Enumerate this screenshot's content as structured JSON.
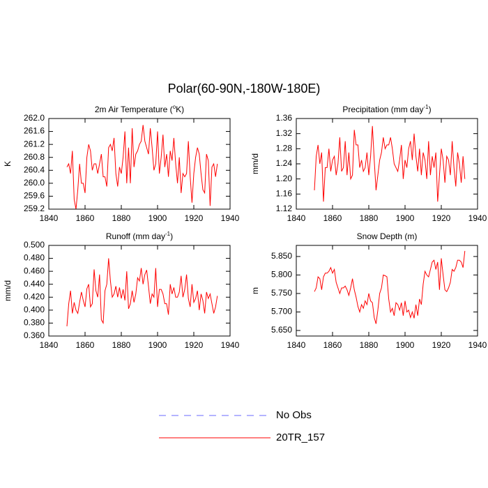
{
  "title": "Polar(60-90N,-180W-180E)",
  "legend": [
    {
      "name": "No Obs",
      "color": "#6a6aff",
      "dashed": true
    },
    {
      "name": "20TR_157",
      "color": "#ff0000",
      "dashed": false
    }
  ],
  "chart_data": [
    {
      "type": "line",
      "title_parts": [
        {
          "text": "2m Air Temperature ("
        },
        {
          "text": "o",
          "sup": true
        },
        {
          "text": "K)"
        }
      ],
      "ylabel": "K",
      "x": [
        1850,
        1851,
        1852,
        1853,
        1854,
        1855,
        1856,
        1857,
        1858,
        1859,
        1860,
        1861,
        1862,
        1863,
        1864,
        1865,
        1866,
        1867,
        1868,
        1869,
        1870,
        1871,
        1872,
        1873,
        1874,
        1875,
        1876,
        1877,
        1878,
        1879,
        1880,
        1881,
        1882,
        1883,
        1884,
        1885,
        1886,
        1887,
        1888,
        1889,
        1890,
        1891,
        1892,
        1893,
        1894,
        1895,
        1896,
        1897,
        1898,
        1899,
        1900,
        1901,
        1902,
        1903,
        1904,
        1905,
        1906,
        1907,
        1908,
        1909,
        1910,
        1911,
        1912,
        1913,
        1914,
        1915,
        1916,
        1917,
        1918,
        1919,
        1920,
        1921,
        1922,
        1923,
        1924,
        1925,
        1926,
        1927,
        1928,
        1929,
        1930,
        1931,
        1932,
        1933
      ],
      "xlim": [
        1840,
        1940
      ],
      "xticks": [
        1840,
        1860,
        1880,
        1900,
        1920,
        1940
      ],
      "ylim": [
        259.2,
        262.0
      ],
      "yticks": [
        259.2,
        259.6,
        {
          "value": 260,
          "label": "260.0"
        },
        260.4,
        260.8,
        261.2,
        261.6,
        {
          "value": 262,
          "label": "262.0"
        }
      ],
      "series": [
        {
          "color": "#ff0000",
          "values": [
            260.5,
            260.6,
            260.3,
            261.0,
            259.5,
            259.2,
            259.8,
            260.6,
            260.0,
            260.0,
            259.7,
            260.8,
            261.2,
            261.0,
            260.4,
            260.6,
            260.6,
            260.3,
            260.6,
            260.9,
            260.2,
            260.2,
            259.9,
            261.1,
            261.2,
            261.0,
            261.4,
            260.3,
            259.9,
            260.5,
            260.3,
            260.8,
            261.6,
            260.0,
            261.1,
            260.0,
            261.7,
            260.5,
            260.9,
            261.0,
            261.2,
            261.3,
            261.8,
            261.3,
            261.1,
            260.9,
            261.7,
            261.1,
            260.4,
            260.6,
            261.6,
            260.3,
            260.8,
            261.5,
            260.5,
            260.9,
            260.2,
            261.0,
            260.7,
            261.4,
            260.6,
            260.0,
            260.8,
            259.7,
            260.3,
            260.2,
            260.3,
            261.3,
            260.2,
            259.4,
            260.3,
            260.8,
            261.1,
            260.9,
            260.3,
            259.8,
            259.7,
            260.9,
            260.7,
            259.3,
            260.5,
            260.6,
            260.2,
            260.6
          ]
        }
      ]
    },
    {
      "type": "line",
      "title_parts": [
        {
          "text": "Precipitation (mm day"
        },
        {
          "text": "-1",
          "sup": true
        },
        {
          "text": ")"
        }
      ],
      "ylabel": "mm/d",
      "x": [
        1850,
        1851,
        1852,
        1853,
        1854,
        1855,
        1856,
        1857,
        1858,
        1859,
        1860,
        1861,
        1862,
        1863,
        1864,
        1865,
        1866,
        1867,
        1868,
        1869,
        1870,
        1871,
        1872,
        1873,
        1874,
        1875,
        1876,
        1877,
        1878,
        1879,
        1880,
        1881,
        1882,
        1883,
        1884,
        1885,
        1886,
        1887,
        1888,
        1889,
        1890,
        1891,
        1892,
        1893,
        1894,
        1895,
        1896,
        1897,
        1898,
        1899,
        1900,
        1901,
        1902,
        1903,
        1904,
        1905,
        1906,
        1907,
        1908,
        1909,
        1910,
        1911,
        1912,
        1913,
        1914,
        1915,
        1916,
        1917,
        1918,
        1919,
        1920,
        1921,
        1922,
        1923,
        1924,
        1925,
        1926,
        1927,
        1928,
        1929,
        1930,
        1931,
        1932,
        1933
      ],
      "xlim": [
        1840,
        1940
      ],
      "xticks": [
        1840,
        1860,
        1880,
        1900,
        1920,
        1940
      ],
      "ylim": [
        1.12,
        1.36
      ],
      "yticks": [
        1.12,
        1.16,
        {
          "value": 1.2,
          "label": "1.20"
        },
        1.24,
        1.28,
        1.32,
        1.36
      ],
      "series": [
        {
          "color": "#ff0000",
          "values": [
            1.17,
            1.26,
            1.29,
            1.24,
            1.27,
            1.14,
            1.23,
            1.23,
            1.28,
            1.22,
            1.25,
            1.26,
            1.21,
            1.24,
            1.31,
            1.22,
            1.23,
            1.3,
            1.21,
            1.27,
            1.2,
            1.21,
            1.33,
            1.29,
            1.29,
            1.23,
            1.25,
            1.22,
            1.23,
            1.27,
            1.21,
            1.26,
            1.34,
            1.25,
            1.17,
            1.21,
            1.25,
            1.27,
            1.31,
            1.28,
            1.29,
            1.29,
            1.31,
            1.28,
            1.24,
            1.23,
            1.22,
            1.25,
            1.29,
            1.2,
            1.25,
            1.23,
            1.28,
            1.3,
            1.25,
            1.32,
            1.26,
            1.22,
            1.28,
            1.21,
            1.27,
            1.25,
            1.2,
            1.3,
            1.21,
            1.26,
            1.23,
            1.27,
            1.14,
            1.21,
            1.28,
            1.25,
            1.19,
            1.26,
            1.25,
            1.21,
            1.3,
            1.23,
            1.18,
            1.27,
            1.24,
            1.19,
            1.26,
            1.2
          ]
        }
      ]
    },
    {
      "type": "line",
      "title_parts": [
        {
          "text": "Runoff (mm day"
        },
        {
          "text": "-1",
          "sup": true
        },
        {
          "text": ")"
        }
      ],
      "ylabel": "mm/d",
      "x": [
        1850,
        1851,
        1852,
        1853,
        1854,
        1855,
        1856,
        1857,
        1858,
        1859,
        1860,
        1861,
        1862,
        1863,
        1864,
        1865,
        1866,
        1867,
        1868,
        1869,
        1870,
        1871,
        1872,
        1873,
        1874,
        1875,
        1876,
        1877,
        1878,
        1879,
        1880,
        1881,
        1882,
        1883,
        1884,
        1885,
        1886,
        1887,
        1888,
        1889,
        1890,
        1891,
        1892,
        1893,
        1894,
        1895,
        1896,
        1897,
        1898,
        1899,
        1900,
        1901,
        1902,
        1903,
        1904,
        1905,
        1906,
        1907,
        1908,
        1909,
        1910,
        1911,
        1912,
        1913,
        1914,
        1915,
        1916,
        1917,
        1918,
        1919,
        1920,
        1921,
        1922,
        1923,
        1924,
        1925,
        1926,
        1927,
        1928,
        1929,
        1930,
        1931,
        1932,
        1933
      ],
      "xlim": [
        1840,
        1940
      ],
      "xticks": [
        1840,
        1860,
        1880,
        1900,
        1920,
        1940
      ],
      "ylim": [
        0.36,
        0.5
      ],
      "yticks": [
        {
          "value": 0.36,
          "label": "0.360"
        },
        {
          "value": 0.38,
          "label": "0.380"
        },
        {
          "value": 0.4,
          "label": "0.400"
        },
        {
          "value": 0.42,
          "label": "0.420"
        },
        {
          "value": 0.44,
          "label": "0.440"
        },
        {
          "value": 0.46,
          "label": "0.460"
        },
        {
          "value": 0.48,
          "label": "0.480"
        },
        {
          "value": 0.5,
          "label": "0.500"
        }
      ],
      "series": [
        {
          "color": "#ff0000",
          "values": [
            0.375,
            0.41,
            0.43,
            0.395,
            0.412,
            0.4,
            0.395,
            0.412,
            0.428,
            0.415,
            0.405,
            0.433,
            0.44,
            0.405,
            0.41,
            0.463,
            0.43,
            0.42,
            0.455,
            0.385,
            0.38,
            0.43,
            0.44,
            0.48,
            0.445,
            0.42,
            0.425,
            0.437,
            0.42,
            0.435,
            0.418,
            0.432,
            0.415,
            0.46,
            0.402,
            0.41,
            0.43,
            0.412,
            0.425,
            0.45,
            0.445,
            0.465,
            0.44,
            0.455,
            0.462,
            0.437,
            0.41,
            0.425,
            0.42,
            0.465,
            0.405,
            0.432,
            0.432,
            0.425,
            0.41,
            0.41,
            0.393,
            0.44,
            0.425,
            0.435,
            0.42,
            0.42,
            0.428,
            0.453,
            0.42,
            0.432,
            0.455,
            0.418,
            0.405,
            0.44,
            0.412,
            0.418,
            0.43,
            0.4,
            0.425,
            0.415,
            0.395,
            0.428,
            0.418,
            0.425,
            0.41,
            0.395,
            0.405,
            0.422
          ]
        }
      ]
    },
    {
      "type": "line",
      "title_parts": [
        {
          "text": "Snow Depth (m)"
        }
      ],
      "ylabel": "m",
      "x": [
        1850,
        1851,
        1852,
        1853,
        1854,
        1855,
        1856,
        1857,
        1858,
        1859,
        1860,
        1861,
        1862,
        1863,
        1864,
        1865,
        1866,
        1867,
        1868,
        1869,
        1870,
        1871,
        1872,
        1873,
        1874,
        1875,
        1876,
        1877,
        1878,
        1879,
        1880,
        1881,
        1882,
        1883,
        1884,
        1885,
        1886,
        1887,
        1888,
        1889,
        1890,
        1891,
        1892,
        1893,
        1894,
        1895,
        1896,
        1897,
        1898,
        1899,
        1900,
        1901,
        1902,
        1903,
        1904,
        1905,
        1906,
        1907,
        1908,
        1909,
        1910,
        1911,
        1912,
        1913,
        1914,
        1915,
        1916,
        1917,
        1918,
        1919,
        1920,
        1921,
        1922,
        1923,
        1924,
        1925,
        1926,
        1927,
        1928,
        1929,
        1930,
        1931,
        1932,
        1933
      ],
      "xlim": [
        1840,
        1940
      ],
      "xticks": [
        1840,
        1860,
        1880,
        1900,
        1920,
        1940
      ],
      "ylim": [
        5.635,
        5.88
      ],
      "yticks": [
        {
          "value": 5.65,
          "label": "5.650"
        },
        {
          "value": 5.7,
          "label": "5.700"
        },
        {
          "value": 5.75,
          "label": "5.750"
        },
        {
          "value": 5.8,
          "label": "5.800"
        },
        {
          "value": 5.85,
          "label": "5.850"
        }
      ],
      "series": [
        {
          "color": "#ff0000",
          "values": [
            5.755,
            5.765,
            5.795,
            5.79,
            5.76,
            5.795,
            5.805,
            5.805,
            5.81,
            5.82,
            5.805,
            5.815,
            5.78,
            5.765,
            5.75,
            5.765,
            5.765,
            5.77,
            5.76,
            5.745,
            5.765,
            5.79,
            5.76,
            5.74,
            5.715,
            5.7,
            5.72,
            5.71,
            5.73,
            5.72,
            5.75,
            5.73,
            5.725,
            5.685,
            5.668,
            5.705,
            5.75,
            5.765,
            5.8,
            5.798,
            5.795,
            5.735,
            5.7,
            5.71,
            5.69,
            5.725,
            5.72,
            5.705,
            5.725,
            5.69,
            5.73,
            5.7,
            5.705,
            5.685,
            5.7,
            5.683,
            5.72,
            5.69,
            5.735,
            5.72,
            5.775,
            5.81,
            5.8,
            5.795,
            5.815,
            5.835,
            5.84,
            5.815,
            5.835,
            5.76,
            5.845,
            5.8,
            5.76,
            5.755,
            5.765,
            5.78,
            5.815,
            5.81,
            5.82,
            5.84,
            5.84,
            5.835,
            5.82,
            5.865
          ]
        }
      ]
    }
  ]
}
